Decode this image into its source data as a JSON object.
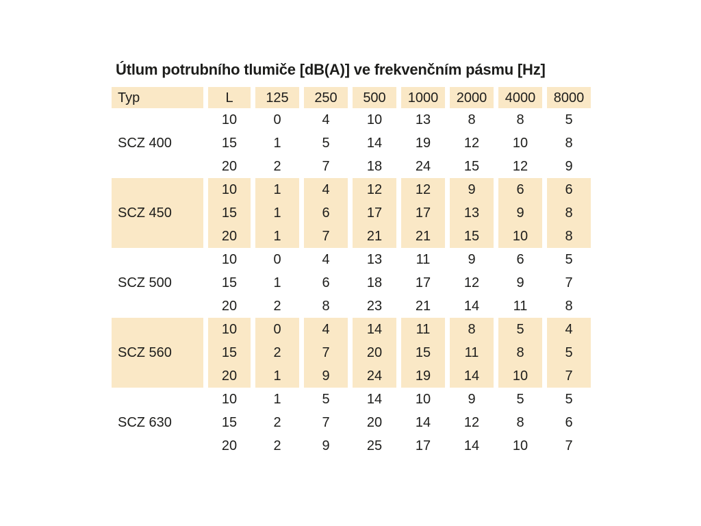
{
  "title": "Útlum potrubního tlumiče [dB(A)] ve frekvenčním pásmu [Hz]",
  "table": {
    "headers": [
      "Typ",
      "L",
      "125",
      "250",
      "500",
      "1000",
      "2000",
      "4000",
      "8000"
    ],
    "groups": [
      {
        "typ": "SCZ 400",
        "rows": [
          [
            10,
            0,
            4,
            10,
            13,
            8,
            8,
            5
          ],
          [
            15,
            1,
            5,
            14,
            19,
            12,
            10,
            8
          ],
          [
            20,
            2,
            7,
            18,
            24,
            15,
            12,
            9
          ]
        ]
      },
      {
        "typ": "SCZ 450",
        "rows": [
          [
            10,
            1,
            4,
            12,
            12,
            9,
            6,
            6
          ],
          [
            15,
            1,
            6,
            17,
            17,
            13,
            9,
            8
          ],
          [
            20,
            1,
            7,
            21,
            21,
            15,
            10,
            8
          ]
        ]
      },
      {
        "typ": "SCZ 500",
        "rows": [
          [
            10,
            0,
            4,
            13,
            11,
            9,
            6,
            5
          ],
          [
            15,
            1,
            6,
            18,
            17,
            12,
            9,
            7
          ],
          [
            20,
            2,
            8,
            23,
            21,
            14,
            11,
            8
          ]
        ]
      },
      {
        "typ": "SCZ 560",
        "rows": [
          [
            10,
            0,
            4,
            14,
            11,
            8,
            5,
            4
          ],
          [
            15,
            2,
            7,
            20,
            15,
            11,
            8,
            5
          ],
          [
            20,
            1,
            9,
            24,
            19,
            14,
            10,
            7
          ]
        ]
      },
      {
        "typ": "SCZ 630",
        "rows": [
          [
            10,
            1,
            5,
            14,
            10,
            9,
            5,
            5
          ],
          [
            15,
            2,
            7,
            20,
            14,
            12,
            8,
            6
          ],
          [
            20,
            2,
            9,
            25,
            17,
            14,
            10,
            7
          ]
        ]
      }
    ]
  },
  "colors": {
    "row_shading": "#fae8c6",
    "background": "#ffffff",
    "text": "#1d1d1b"
  },
  "chart_data": {
    "type": "table",
    "title": "Útlum potrubního tlumiče [dB(A)] ve frekvenčním pásmu [Hz]",
    "columns": [
      "Typ",
      "L",
      "125",
      "250",
      "500",
      "1000",
      "2000",
      "4000",
      "8000"
    ],
    "rows": [
      [
        "SCZ 400",
        10,
        0,
        4,
        10,
        13,
        8,
        8,
        5
      ],
      [
        "SCZ 400",
        15,
        1,
        5,
        14,
        19,
        12,
        10,
        8
      ],
      [
        "SCZ 400",
        20,
        2,
        7,
        18,
        24,
        15,
        12,
        9
      ],
      [
        "SCZ 450",
        10,
        1,
        4,
        12,
        12,
        9,
        6,
        6
      ],
      [
        "SCZ 450",
        15,
        1,
        6,
        17,
        17,
        13,
        9,
        8
      ],
      [
        "SCZ 450",
        20,
        1,
        7,
        21,
        21,
        15,
        10,
        8
      ],
      [
        "SCZ 500",
        10,
        0,
        4,
        13,
        11,
        9,
        6,
        5
      ],
      [
        "SCZ 500",
        15,
        1,
        6,
        18,
        17,
        12,
        9,
        7
      ],
      [
        "SCZ 500",
        20,
        2,
        8,
        23,
        21,
        14,
        11,
        8
      ],
      [
        "SCZ 560",
        10,
        0,
        4,
        14,
        11,
        8,
        5,
        4
      ],
      [
        "SCZ 560",
        15,
        2,
        7,
        20,
        15,
        11,
        8,
        5
      ],
      [
        "SCZ 560",
        20,
        1,
        9,
        24,
        19,
        14,
        10,
        7
      ],
      [
        "SCZ 630",
        10,
        1,
        5,
        14,
        10,
        9,
        5,
        5
      ],
      [
        "SCZ 630",
        15,
        2,
        7,
        20,
        14,
        12,
        8,
        6
      ],
      [
        "SCZ 630",
        20,
        2,
        9,
        25,
        17,
        14,
        10,
        7
      ]
    ]
  }
}
